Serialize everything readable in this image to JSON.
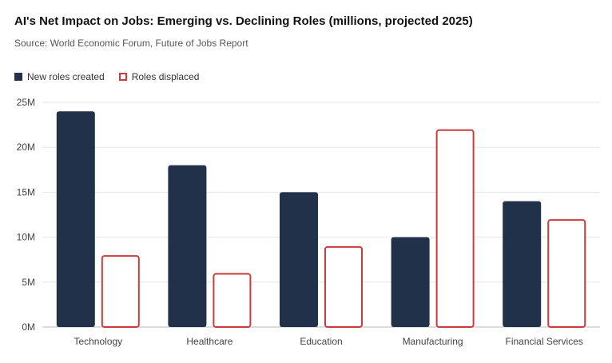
{
  "header": {
    "title": "AI's Net Impact on Jobs: Emerging vs. Declining Roles (millions, projected 2025)",
    "subtitle": "Source: World Economic Forum, Future of Jobs Report"
  },
  "colors": {
    "created": "#22314a",
    "displaced": "#cc3b3b",
    "grid": "#e5e5e5",
    "axis": "#bbbbbb"
  },
  "chart_data": {
    "type": "bar",
    "title": "AI's Net Impact on Jobs: Emerging vs. Declining Roles (millions, projected 2025)",
    "subtitle": "Source: World Economic Forum, Future of Jobs Report",
    "categories": [
      "Technology",
      "Healthcare",
      "Education",
      "Manufacturing",
      "Financial Services"
    ],
    "series": [
      {
        "name": "New roles created",
        "style": "filled",
        "values": [
          24,
          18,
          15,
          10,
          14
        ]
      },
      {
        "name": "Roles displaced",
        "style": "outline",
        "values": [
          8,
          6,
          9,
          22,
          12
        ]
      }
    ],
    "yticks": [
      "0M",
      "5M",
      "10M",
      "15M",
      "20M",
      "25M"
    ],
    "ylim": [
      0,
      25
    ],
    "grid": true,
    "legend": "top-left"
  }
}
